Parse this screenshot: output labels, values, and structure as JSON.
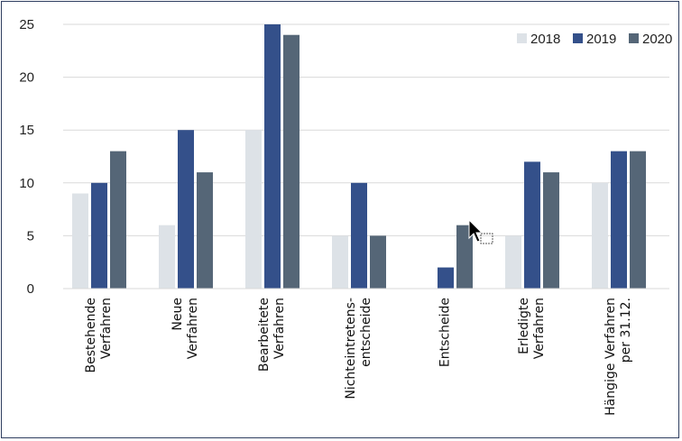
{
  "chart_data": {
    "type": "bar",
    "categories": [
      [
        "Bestehende",
        "Verfahren"
      ],
      [
        "Neue",
        "Verfahren"
      ],
      [
        "Bearbeitete",
        "Verfahren"
      ],
      [
        "Nichteintretens-",
        "entscheide"
      ],
      [
        "Entscheide"
      ],
      [
        "Erledigte",
        "Verfahren"
      ],
      [
        "Hängige Verfahren",
        "per 31.12."
      ]
    ],
    "series": [
      {
        "name": "2018",
        "color": "#dde2e7",
        "values": [
          9,
          6,
          15,
          5,
          0,
          5,
          10
        ]
      },
      {
        "name": "2019",
        "color": "#34508a",
        "values": [
          10,
          15,
          25,
          10,
          2,
          12,
          13
        ]
      },
      {
        "name": "2020",
        "color": "#556677",
        "values": [
          13,
          11,
          24,
          5,
          6,
          11,
          13
        ]
      }
    ],
    "ylim": [
      0,
      25
    ],
    "yticks": [
      0,
      5,
      10,
      15,
      20,
      25
    ],
    "grid": true,
    "legend_position": "top-right"
  }
}
